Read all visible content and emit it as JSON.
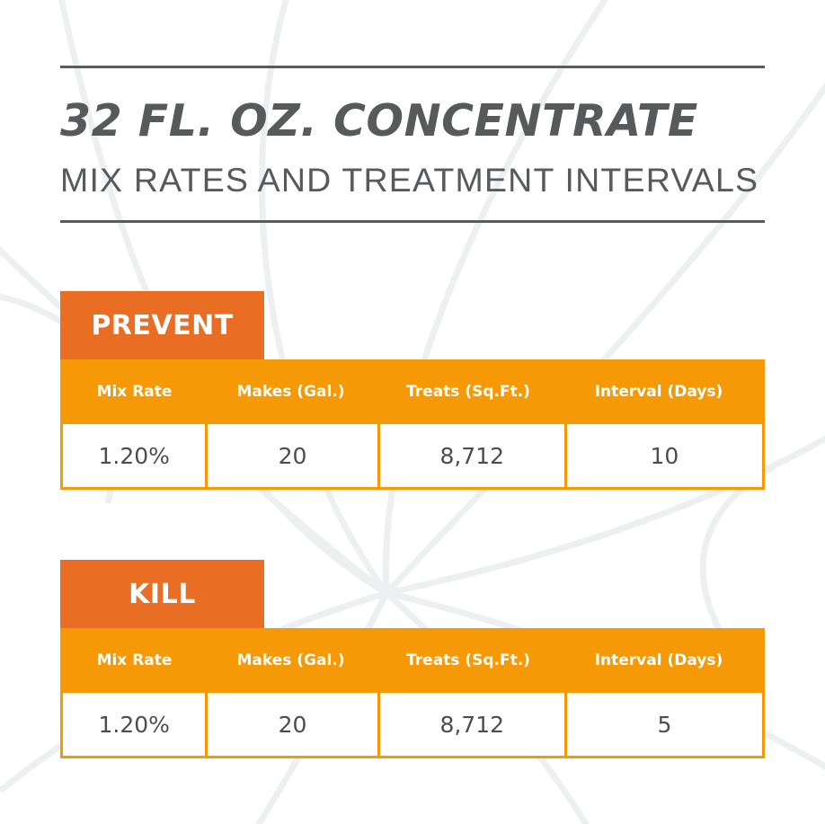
{
  "header": {
    "title": "32 FL. OZ. CONCENTRATE",
    "subtitle": "MIX RATES AND TREATMENT INTERVALS"
  },
  "columns": [
    "Mix Rate",
    "Makes (Gal.)",
    "Treats (Sq.Ft.)",
    "Interval (Days)"
  ],
  "prevent": {
    "label": "PREVENT",
    "row": [
      "1.20%",
      "20",
      "8,712",
      "10"
    ]
  },
  "kill": {
    "label": "KILL",
    "row": [
      "1.20%",
      "20",
      "8,712",
      "5"
    ]
  },
  "colors": {
    "tab": "#ea6d24",
    "table_header": "#f59a06",
    "text": "#58595b",
    "background_art": "#eeeff1"
  }
}
